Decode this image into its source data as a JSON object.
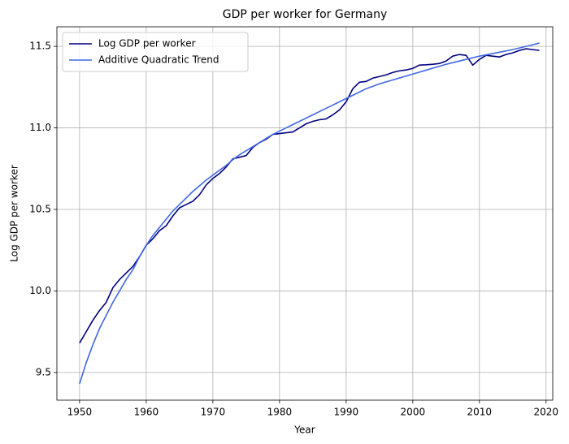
{
  "chart_data": {
    "type": "line",
    "title": "GDP per worker for Germany",
    "x_label": "Year",
    "y_label": "Log GDP per worker",
    "x": [
      1950,
      1951,
      1952,
      1953,
      1954,
      1955,
      1956,
      1957,
      1958,
      1959,
      1960,
      1961,
      1962,
      1963,
      1964,
      1965,
      1966,
      1967,
      1968,
      1969,
      1970,
      1971,
      1972,
      1973,
      1974,
      1975,
      1976,
      1977,
      1978,
      1979,
      1980,
      1981,
      1982,
      1983,
      1984,
      1985,
      1986,
      1987,
      1988,
      1989,
      1990,
      1991,
      1992,
      1993,
      1994,
      1995,
      1996,
      1997,
      1998,
      1999,
      2000,
      2001,
      2002,
      2003,
      2004,
      2005,
      2006,
      2007,
      2008,
      2009,
      2010,
      2011,
      2012,
      2013,
      2014,
      2015,
      2016,
      2017,
      2018,
      2019
    ],
    "series": [
      {
        "name": "Log GDP per worker",
        "color": "#000080",
        "values": [
          9.68,
          9.75,
          9.82,
          9.88,
          9.93,
          10.02,
          10.07,
          10.11,
          10.15,
          10.21,
          10.28,
          10.32,
          10.37,
          10.4,
          10.46,
          10.51,
          10.53,
          10.55,
          10.59,
          10.65,
          10.69,
          10.72,
          10.76,
          10.81,
          10.82,
          10.83,
          10.88,
          10.91,
          10.93,
          10.96,
          10.965,
          10.97,
          10.975,
          11.0,
          11.025,
          11.04,
          11.05,
          11.055,
          11.08,
          11.11,
          11.16,
          11.24,
          11.28,
          11.285,
          11.305,
          11.315,
          11.325,
          11.34,
          11.35,
          11.355,
          11.365,
          11.385,
          11.387,
          11.39,
          11.395,
          11.41,
          11.44,
          11.45,
          11.445,
          11.385,
          11.42,
          11.445,
          11.44,
          11.435,
          11.45,
          11.46,
          11.475,
          11.485,
          11.48,
          11.475
        ]
      },
      {
        "name": "Additive Quadratic Trend",
        "color": "#4169e1",
        "values": [
          9.43,
          9.56,
          9.67,
          9.77,
          9.85,
          9.93,
          10.0,
          10.07,
          10.13,
          10.21,
          10.28,
          10.34,
          10.39,
          10.44,
          10.49,
          10.53,
          10.57,
          10.61,
          10.645,
          10.68,
          10.71,
          10.74,
          10.77,
          10.805,
          10.835,
          10.86,
          10.885,
          10.91,
          10.935,
          10.96,
          10.98,
          11.0,
          11.02,
          11.04,
          11.06,
          11.08,
          11.1,
          11.12,
          11.14,
          11.16,
          11.18,
          11.2,
          11.22,
          11.24,
          11.255,
          11.27,
          11.282,
          11.294,
          11.306,
          11.318,
          11.33,
          11.342,
          11.354,
          11.366,
          11.378,
          11.39,
          11.4,
          11.41,
          11.42,
          11.43,
          11.44,
          11.448,
          11.456,
          11.464,
          11.472,
          11.48,
          11.49,
          11.5,
          11.51,
          11.52
        ]
      }
    ],
    "xlim": [
      1946.6,
      2021
    ],
    "xticks": [
      1950,
      1960,
      1970,
      1980,
      1990,
      2000,
      2010,
      2020
    ],
    "ylim": [
      9.33,
      11.62
    ],
    "yticks": [
      9.5,
      {
        "value": 10,
        "label": "10.0"
      },
      10.5,
      {
        "value": 11,
        "label": "11.0"
      },
      11.5
    ],
    "grid": true,
    "legend": "upper left"
  }
}
